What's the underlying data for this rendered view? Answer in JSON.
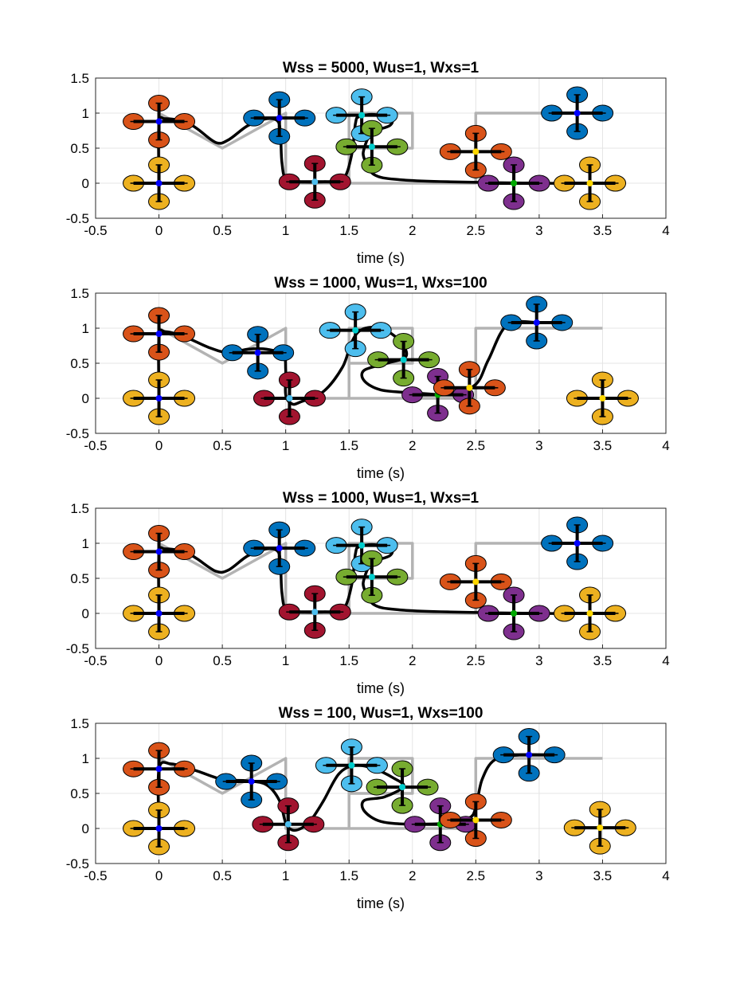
{
  "chart_data": [
    {
      "type": "line",
      "title": "Wss = 5000, Wus=1, Wxs=1",
      "xlabel": "time (s)",
      "ylabel": "",
      "xlim": [
        -0.5,
        4
      ],
      "ylim": [
        -0.5,
        1.5
      ],
      "xticks": [
        "-0.5",
        "0",
        "0.5",
        "1",
        "1.5",
        "2",
        "2.5",
        "3",
        "3.5",
        "4"
      ],
      "yticks": [
        "-0.5",
        "0",
        "0.5",
        "1",
        "1.5"
      ],
      "grid": true,
      "reference": [
        [
          0,
          0
        ],
        [
          0,
          1
        ],
        [
          0.5,
          0.5
        ],
        [
          1,
          1
        ],
        [
          1,
          0
        ],
        [
          1.5,
          0
        ],
        [
          1.5,
          1
        ],
        [
          2,
          1
        ],
        [
          2,
          0.5
        ],
        [
          1.5,
          0.5
        ],
        [
          1.5,
          0
        ],
        [
          2.5,
          0
        ],
        [
          2.5,
          1
        ],
        [
          3.5,
          1
        ]
      ],
      "trajectory": [
        [
          0,
          0
        ],
        [
          0,
          0.85
        ],
        [
          0.05,
          0.92
        ],
        [
          0.2,
          0.88
        ],
        [
          0.3,
          0.78
        ],
        [
          0.45,
          0.58
        ],
        [
          0.55,
          0.62
        ],
        [
          0.7,
          0.82
        ],
        [
          0.85,
          0.92
        ],
        [
          0.94,
          0.88
        ],
        [
          0.96,
          0.65
        ],
        [
          0.97,
          0.3
        ],
        [
          1.0,
          0.06
        ],
        [
          1.1,
          0.02
        ],
        [
          1.3,
          0.02
        ],
        [
          1.45,
          0.05
        ],
        [
          1.52,
          0.4
        ],
        [
          1.55,
          0.85
        ],
        [
          1.58,
          0.95
        ],
        [
          1.7,
          0.98
        ],
        [
          1.83,
          0.92
        ],
        [
          1.82,
          0.82
        ],
        [
          1.68,
          0.72
        ],
        [
          1.62,
          0.5
        ],
        [
          1.62,
          0.35
        ],
        [
          1.7,
          0.12
        ],
        [
          1.9,
          0.05
        ],
        [
          2.3,
          0.02
        ],
        [
          3.0,
          0.0
        ],
        [
          3.5,
          0.0
        ],
        [
          3.55,
          0.0
        ]
      ],
      "drones": [
        {
          "x": 0.0,
          "y": 0.0,
          "color": "#edb120",
          "hub": "#0000ff"
        },
        {
          "x": 0.0,
          "y": 0.88,
          "color": "#d95319",
          "hub": "#0000ff"
        },
        {
          "x": 0.95,
          "y": 0.93,
          "color": "#0072bd",
          "hub": "#0000ff"
        },
        {
          "x": 1.23,
          "y": 0.02,
          "color": "#a2142f",
          "hub": "#4dbeee"
        },
        {
          "x": 1.6,
          "y": 0.97,
          "color": "#4dbeee",
          "hub": "#00cccc"
        },
        {
          "x": 1.68,
          "y": 0.52,
          "color": "#77ac30",
          "hub": "#00cccc"
        },
        {
          "x": 2.5,
          "y": 0.45,
          "color": "#d95319",
          "hub": "#ffd700"
        },
        {
          "x": 2.8,
          "y": 0.0,
          "color": "#7e2f8e",
          "hub": "#00aa00"
        },
        {
          "x": 3.4,
          "y": 0.0,
          "color": "#edb120",
          "hub": "#ffd700"
        },
        {
          "x": 3.3,
          "y": 1.0,
          "color": "#0072bd",
          "hub": "#0000ff"
        }
      ]
    },
    {
      "type": "line",
      "title": "Wss = 1000, Wus=1, Wxs=100",
      "xlabel": "time (s)",
      "ylabel": "",
      "xlim": [
        -0.5,
        4
      ],
      "ylim": [
        -0.5,
        1.5
      ],
      "xticks": [
        "-0.5",
        "0",
        "0.5",
        "1",
        "1.5",
        "2",
        "2.5",
        "3",
        "3.5",
        "4"
      ],
      "yticks": [
        "-0.5",
        "0",
        "0.5",
        "1",
        "1.5"
      ],
      "grid": true,
      "reference": [
        [
          0,
          0
        ],
        [
          0,
          1
        ],
        [
          0.5,
          0.5
        ],
        [
          1,
          1
        ],
        [
          1,
          0
        ],
        [
          1.5,
          0
        ],
        [
          1.5,
          1
        ],
        [
          2,
          1
        ],
        [
          2,
          0.5
        ],
        [
          1.5,
          0.5
        ],
        [
          1.5,
          0
        ],
        [
          2.5,
          0
        ],
        [
          2.5,
          1
        ],
        [
          3.5,
          1
        ]
      ],
      "trajectory": [
        [
          0,
          0
        ],
        [
          0,
          0.88
        ],
        [
          0.05,
          0.95
        ],
        [
          0.2,
          0.88
        ],
        [
          0.4,
          0.72
        ],
        [
          0.55,
          0.65
        ],
        [
          0.7,
          0.7
        ],
        [
          0.85,
          0.7
        ],
        [
          0.98,
          0.62
        ],
        [
          1.0,
          0.4
        ],
        [
          1.0,
          0.05
        ],
        [
          1.05,
          -0.08
        ],
        [
          1.12,
          -0.05
        ],
        [
          1.3,
          0.1
        ],
        [
          1.45,
          0.45
        ],
        [
          1.52,
          0.8
        ],
        [
          1.6,
          0.98
        ],
        [
          1.75,
          1.0
        ],
        [
          1.9,
          0.82
        ],
        [
          1.95,
          0.6
        ],
        [
          1.8,
          0.5
        ],
        [
          1.62,
          0.4
        ],
        [
          1.62,
          0.25
        ],
        [
          1.75,
          0.12
        ],
        [
          2.0,
          0.08
        ],
        [
          2.3,
          0.06
        ],
        [
          2.5,
          0.2
        ],
        [
          2.6,
          0.55
        ],
        [
          2.75,
          1.05
        ],
        [
          3.0,
          1.08
        ],
        [
          3.1,
          1.08
        ]
      ],
      "drones": [
        {
          "x": 0.0,
          "y": 0.0,
          "color": "#edb120",
          "hub": "#0000ff"
        },
        {
          "x": 0.0,
          "y": 0.92,
          "color": "#d95319",
          "hub": "#0000ff"
        },
        {
          "x": 0.78,
          "y": 0.65,
          "color": "#0072bd",
          "hub": "#0000ff"
        },
        {
          "x": 1.03,
          "y": 0.0,
          "color": "#a2142f",
          "hub": "#4dbeee"
        },
        {
          "x": 1.55,
          "y": 0.97,
          "color": "#4dbeee",
          "hub": "#00cccc"
        },
        {
          "x": 1.93,
          "y": 0.55,
          "color": "#77ac30",
          "hub": "#00cccc"
        },
        {
          "x": 2.2,
          "y": 0.05,
          "color": "#7e2f8e",
          "hub": "#00aa00"
        },
        {
          "x": 2.45,
          "y": 0.15,
          "color": "#d95319",
          "hub": "#ffd700"
        },
        {
          "x": 2.98,
          "y": 1.08,
          "color": "#0072bd",
          "hub": "#0000ff"
        },
        {
          "x": 3.5,
          "y": 0.0,
          "color": "#edb120",
          "hub": "#ffd700"
        }
      ]
    },
    {
      "type": "line",
      "title": "Wss = 1000, Wus=1, Wxs=1",
      "xlabel": "time (s)",
      "ylabel": "",
      "xlim": [
        -0.5,
        4
      ],
      "ylim": [
        -0.5,
        1.5
      ],
      "xticks": [
        "-0.5",
        "0",
        "0.5",
        "1",
        "1.5",
        "2",
        "2.5",
        "3",
        "3.5",
        "4"
      ],
      "yticks": [
        "-0.5",
        "0",
        "0.5",
        "1",
        "1.5"
      ],
      "grid": true,
      "reference": [
        [
          0,
          0
        ],
        [
          0,
          1
        ],
        [
          0.5,
          0.5
        ],
        [
          1,
          1
        ],
        [
          1,
          0
        ],
        [
          1.5,
          0
        ],
        [
          1.5,
          1
        ],
        [
          2,
          1
        ],
        [
          2,
          0.5
        ],
        [
          1.5,
          0.5
        ],
        [
          1.5,
          0
        ],
        [
          2.5,
          0
        ],
        [
          2.5,
          1
        ],
        [
          3.5,
          1
        ]
      ],
      "trajectory": [
        [
          0,
          0
        ],
        [
          0,
          0.85
        ],
        [
          0.05,
          0.92
        ],
        [
          0.2,
          0.88
        ],
        [
          0.3,
          0.78
        ],
        [
          0.45,
          0.6
        ],
        [
          0.55,
          0.62
        ],
        [
          0.7,
          0.82
        ],
        [
          0.85,
          0.92
        ],
        [
          0.94,
          0.88
        ],
        [
          0.96,
          0.65
        ],
        [
          0.97,
          0.3
        ],
        [
          1.0,
          0.06
        ],
        [
          1.1,
          0.02
        ],
        [
          1.3,
          0.02
        ],
        [
          1.45,
          0.05
        ],
        [
          1.52,
          0.4
        ],
        [
          1.55,
          0.85
        ],
        [
          1.58,
          0.95
        ],
        [
          1.7,
          0.98
        ],
        [
          1.83,
          0.92
        ],
        [
          1.82,
          0.82
        ],
        [
          1.68,
          0.72
        ],
        [
          1.62,
          0.5
        ],
        [
          1.62,
          0.35
        ],
        [
          1.7,
          0.12
        ],
        [
          1.9,
          0.05
        ],
        [
          2.3,
          0.02
        ],
        [
          3.0,
          0.0
        ],
        [
          3.5,
          0.0
        ],
        [
          3.55,
          0.0
        ]
      ],
      "drones": [
        {
          "x": 0.0,
          "y": 0.0,
          "color": "#edb120",
          "hub": "#0000ff"
        },
        {
          "x": 0.0,
          "y": 0.88,
          "color": "#d95319",
          "hub": "#0000ff"
        },
        {
          "x": 0.95,
          "y": 0.93,
          "color": "#0072bd",
          "hub": "#0000ff"
        },
        {
          "x": 1.23,
          "y": 0.02,
          "color": "#a2142f",
          "hub": "#4dbeee"
        },
        {
          "x": 1.6,
          "y": 0.97,
          "color": "#4dbeee",
          "hub": "#00cccc"
        },
        {
          "x": 1.68,
          "y": 0.52,
          "color": "#77ac30",
          "hub": "#00cccc"
        },
        {
          "x": 2.5,
          "y": 0.45,
          "color": "#d95319",
          "hub": "#ffd700"
        },
        {
          "x": 2.8,
          "y": 0.0,
          "color": "#7e2f8e",
          "hub": "#00aa00"
        },
        {
          "x": 3.4,
          "y": 0.0,
          "color": "#edb120",
          "hub": "#ffd700"
        },
        {
          "x": 3.3,
          "y": 1.0,
          "color": "#0072bd",
          "hub": "#0000ff"
        }
      ]
    },
    {
      "type": "line",
      "title": "Wss = 100, Wus=1, Wxs=100",
      "xlabel": "time (s)",
      "ylabel": "",
      "xlim": [
        -0.5,
        4
      ],
      "ylim": [
        -0.5,
        1.5
      ],
      "xticks": [
        "-0.5",
        "0",
        "0.5",
        "1",
        "1.5",
        "2",
        "2.5",
        "3",
        "3.5",
        "4"
      ],
      "yticks": [
        "-0.5",
        "0",
        "0.5",
        "1",
        "1.5"
      ],
      "grid": true,
      "reference": [
        [
          0,
          0
        ],
        [
          0,
          1
        ],
        [
          0.5,
          0.5
        ],
        [
          1,
          1
        ],
        [
          1,
          0
        ],
        [
          1.5,
          0
        ],
        [
          1.5,
          1
        ],
        [
          2,
          1
        ],
        [
          2,
          0.5
        ],
        [
          1.5,
          0.5
        ],
        [
          1.5,
          0
        ],
        [
          2.5,
          0
        ],
        [
          2.5,
          1
        ],
        [
          3.5,
          1
        ]
      ],
      "trajectory": [
        [
          0,
          0
        ],
        [
          0,
          0.85
        ],
        [
          0.1,
          0.92
        ],
        [
          0.3,
          0.82
        ],
        [
          0.5,
          0.7
        ],
        [
          0.7,
          0.68
        ],
        [
          0.85,
          0.62
        ],
        [
          0.95,
          0.4
        ],
        [
          1.0,
          0.08
        ],
        [
          1.05,
          -0.02
        ],
        [
          1.12,
          0.0
        ],
        [
          1.2,
          0.12
        ],
        [
          1.3,
          0.4
        ],
        [
          1.42,
          0.78
        ],
        [
          1.55,
          0.9
        ],
        [
          1.7,
          0.85
        ],
        [
          1.85,
          0.72
        ],
        [
          1.93,
          0.6
        ],
        [
          1.78,
          0.45
        ],
        [
          1.62,
          0.4
        ],
        [
          1.62,
          0.25
        ],
        [
          1.75,
          0.1
        ],
        [
          2.0,
          0.06
        ],
        [
          2.3,
          0.08
        ],
        [
          2.45,
          0.15
        ],
        [
          2.5,
          0.3
        ],
        [
          2.55,
          0.7
        ],
        [
          2.65,
          0.98
        ],
        [
          2.85,
          1.05
        ],
        [
          3.0,
          1.05
        ]
      ],
      "drones": [
        {
          "x": 0.0,
          "y": 0.0,
          "color": "#edb120",
          "hub": "#0000ff"
        },
        {
          "x": 0.0,
          "y": 0.85,
          "color": "#d95319",
          "hub": "#0000ff"
        },
        {
          "x": 0.73,
          "y": 0.67,
          "color": "#0072bd",
          "hub": "#0000ff"
        },
        {
          "x": 1.02,
          "y": 0.06,
          "color": "#a2142f",
          "hub": "#4dbeee"
        },
        {
          "x": 1.52,
          "y": 0.9,
          "color": "#4dbeee",
          "hub": "#00cccc"
        },
        {
          "x": 1.92,
          "y": 0.59,
          "color": "#77ac30",
          "hub": "#00cccc"
        },
        {
          "x": 2.22,
          "y": 0.06,
          "color": "#7e2f8e",
          "hub": "#00aa00"
        },
        {
          "x": 2.5,
          "y": 0.12,
          "color": "#d95319",
          "hub": "#ffd700"
        },
        {
          "x": 2.92,
          "y": 1.05,
          "color": "#0072bd",
          "hub": "#0000ff"
        },
        {
          "x": 3.48,
          "y": 0.01,
          "color": "#edb120",
          "hub": "#ffd700"
        }
      ]
    }
  ]
}
